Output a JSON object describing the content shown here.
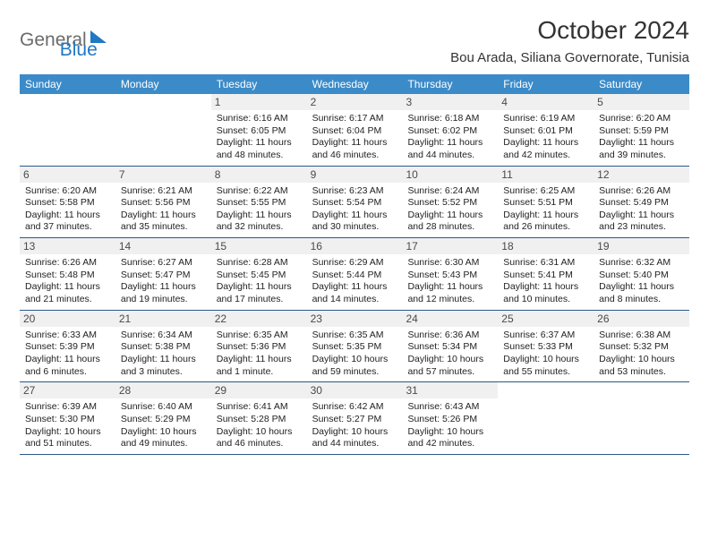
{
  "brand": {
    "part1": "General",
    "part2": "Blue"
  },
  "title": "October 2024",
  "location": "Bou Arada, Siliana Governorate, Tunisia",
  "dayHeaders": [
    "Sunday",
    "Monday",
    "Tuesday",
    "Wednesday",
    "Thursday",
    "Friday",
    "Saturday"
  ],
  "colors": {
    "headerBar": "#3b8bc9",
    "daynumBg": "#f0f0f0",
    "rowBorder": "#2a5a8a",
    "logoBlue": "#2178c3",
    "logoGray": "#6b6b6b"
  },
  "weeks": [
    [
      {
        "day": "",
        "sunrise": "",
        "sunset": "",
        "daylight": ""
      },
      {
        "day": "",
        "sunrise": "",
        "sunset": "",
        "daylight": ""
      },
      {
        "day": "1",
        "sunrise": "Sunrise: 6:16 AM",
        "sunset": "Sunset: 6:05 PM",
        "daylight": "Daylight: 11 hours and 48 minutes."
      },
      {
        "day": "2",
        "sunrise": "Sunrise: 6:17 AM",
        "sunset": "Sunset: 6:04 PM",
        "daylight": "Daylight: 11 hours and 46 minutes."
      },
      {
        "day": "3",
        "sunrise": "Sunrise: 6:18 AM",
        "sunset": "Sunset: 6:02 PM",
        "daylight": "Daylight: 11 hours and 44 minutes."
      },
      {
        "day": "4",
        "sunrise": "Sunrise: 6:19 AM",
        "sunset": "Sunset: 6:01 PM",
        "daylight": "Daylight: 11 hours and 42 minutes."
      },
      {
        "day": "5",
        "sunrise": "Sunrise: 6:20 AM",
        "sunset": "Sunset: 5:59 PM",
        "daylight": "Daylight: 11 hours and 39 minutes."
      }
    ],
    [
      {
        "day": "6",
        "sunrise": "Sunrise: 6:20 AM",
        "sunset": "Sunset: 5:58 PM",
        "daylight": "Daylight: 11 hours and 37 minutes."
      },
      {
        "day": "7",
        "sunrise": "Sunrise: 6:21 AM",
        "sunset": "Sunset: 5:56 PM",
        "daylight": "Daylight: 11 hours and 35 minutes."
      },
      {
        "day": "8",
        "sunrise": "Sunrise: 6:22 AM",
        "sunset": "Sunset: 5:55 PM",
        "daylight": "Daylight: 11 hours and 32 minutes."
      },
      {
        "day": "9",
        "sunrise": "Sunrise: 6:23 AM",
        "sunset": "Sunset: 5:54 PM",
        "daylight": "Daylight: 11 hours and 30 minutes."
      },
      {
        "day": "10",
        "sunrise": "Sunrise: 6:24 AM",
        "sunset": "Sunset: 5:52 PM",
        "daylight": "Daylight: 11 hours and 28 minutes."
      },
      {
        "day": "11",
        "sunrise": "Sunrise: 6:25 AM",
        "sunset": "Sunset: 5:51 PM",
        "daylight": "Daylight: 11 hours and 26 minutes."
      },
      {
        "day": "12",
        "sunrise": "Sunrise: 6:26 AM",
        "sunset": "Sunset: 5:49 PM",
        "daylight": "Daylight: 11 hours and 23 minutes."
      }
    ],
    [
      {
        "day": "13",
        "sunrise": "Sunrise: 6:26 AM",
        "sunset": "Sunset: 5:48 PM",
        "daylight": "Daylight: 11 hours and 21 minutes."
      },
      {
        "day": "14",
        "sunrise": "Sunrise: 6:27 AM",
        "sunset": "Sunset: 5:47 PM",
        "daylight": "Daylight: 11 hours and 19 minutes."
      },
      {
        "day": "15",
        "sunrise": "Sunrise: 6:28 AM",
        "sunset": "Sunset: 5:45 PM",
        "daylight": "Daylight: 11 hours and 17 minutes."
      },
      {
        "day": "16",
        "sunrise": "Sunrise: 6:29 AM",
        "sunset": "Sunset: 5:44 PM",
        "daylight": "Daylight: 11 hours and 14 minutes."
      },
      {
        "day": "17",
        "sunrise": "Sunrise: 6:30 AM",
        "sunset": "Sunset: 5:43 PM",
        "daylight": "Daylight: 11 hours and 12 minutes."
      },
      {
        "day": "18",
        "sunrise": "Sunrise: 6:31 AM",
        "sunset": "Sunset: 5:41 PM",
        "daylight": "Daylight: 11 hours and 10 minutes."
      },
      {
        "day": "19",
        "sunrise": "Sunrise: 6:32 AM",
        "sunset": "Sunset: 5:40 PM",
        "daylight": "Daylight: 11 hours and 8 minutes."
      }
    ],
    [
      {
        "day": "20",
        "sunrise": "Sunrise: 6:33 AM",
        "sunset": "Sunset: 5:39 PM",
        "daylight": "Daylight: 11 hours and 6 minutes."
      },
      {
        "day": "21",
        "sunrise": "Sunrise: 6:34 AM",
        "sunset": "Sunset: 5:38 PM",
        "daylight": "Daylight: 11 hours and 3 minutes."
      },
      {
        "day": "22",
        "sunrise": "Sunrise: 6:35 AM",
        "sunset": "Sunset: 5:36 PM",
        "daylight": "Daylight: 11 hours and 1 minute."
      },
      {
        "day": "23",
        "sunrise": "Sunrise: 6:35 AM",
        "sunset": "Sunset: 5:35 PM",
        "daylight": "Daylight: 10 hours and 59 minutes."
      },
      {
        "day": "24",
        "sunrise": "Sunrise: 6:36 AM",
        "sunset": "Sunset: 5:34 PM",
        "daylight": "Daylight: 10 hours and 57 minutes."
      },
      {
        "day": "25",
        "sunrise": "Sunrise: 6:37 AM",
        "sunset": "Sunset: 5:33 PM",
        "daylight": "Daylight: 10 hours and 55 minutes."
      },
      {
        "day": "26",
        "sunrise": "Sunrise: 6:38 AM",
        "sunset": "Sunset: 5:32 PM",
        "daylight": "Daylight: 10 hours and 53 minutes."
      }
    ],
    [
      {
        "day": "27",
        "sunrise": "Sunrise: 6:39 AM",
        "sunset": "Sunset: 5:30 PM",
        "daylight": "Daylight: 10 hours and 51 minutes."
      },
      {
        "day": "28",
        "sunrise": "Sunrise: 6:40 AM",
        "sunset": "Sunset: 5:29 PM",
        "daylight": "Daylight: 10 hours and 49 minutes."
      },
      {
        "day": "29",
        "sunrise": "Sunrise: 6:41 AM",
        "sunset": "Sunset: 5:28 PM",
        "daylight": "Daylight: 10 hours and 46 minutes."
      },
      {
        "day": "30",
        "sunrise": "Sunrise: 6:42 AM",
        "sunset": "Sunset: 5:27 PM",
        "daylight": "Daylight: 10 hours and 44 minutes."
      },
      {
        "day": "31",
        "sunrise": "Sunrise: 6:43 AM",
        "sunset": "Sunset: 5:26 PM",
        "daylight": "Daylight: 10 hours and 42 minutes."
      },
      {
        "day": "",
        "sunrise": "",
        "sunset": "",
        "daylight": ""
      },
      {
        "day": "",
        "sunrise": "",
        "sunset": "",
        "daylight": ""
      }
    ]
  ]
}
